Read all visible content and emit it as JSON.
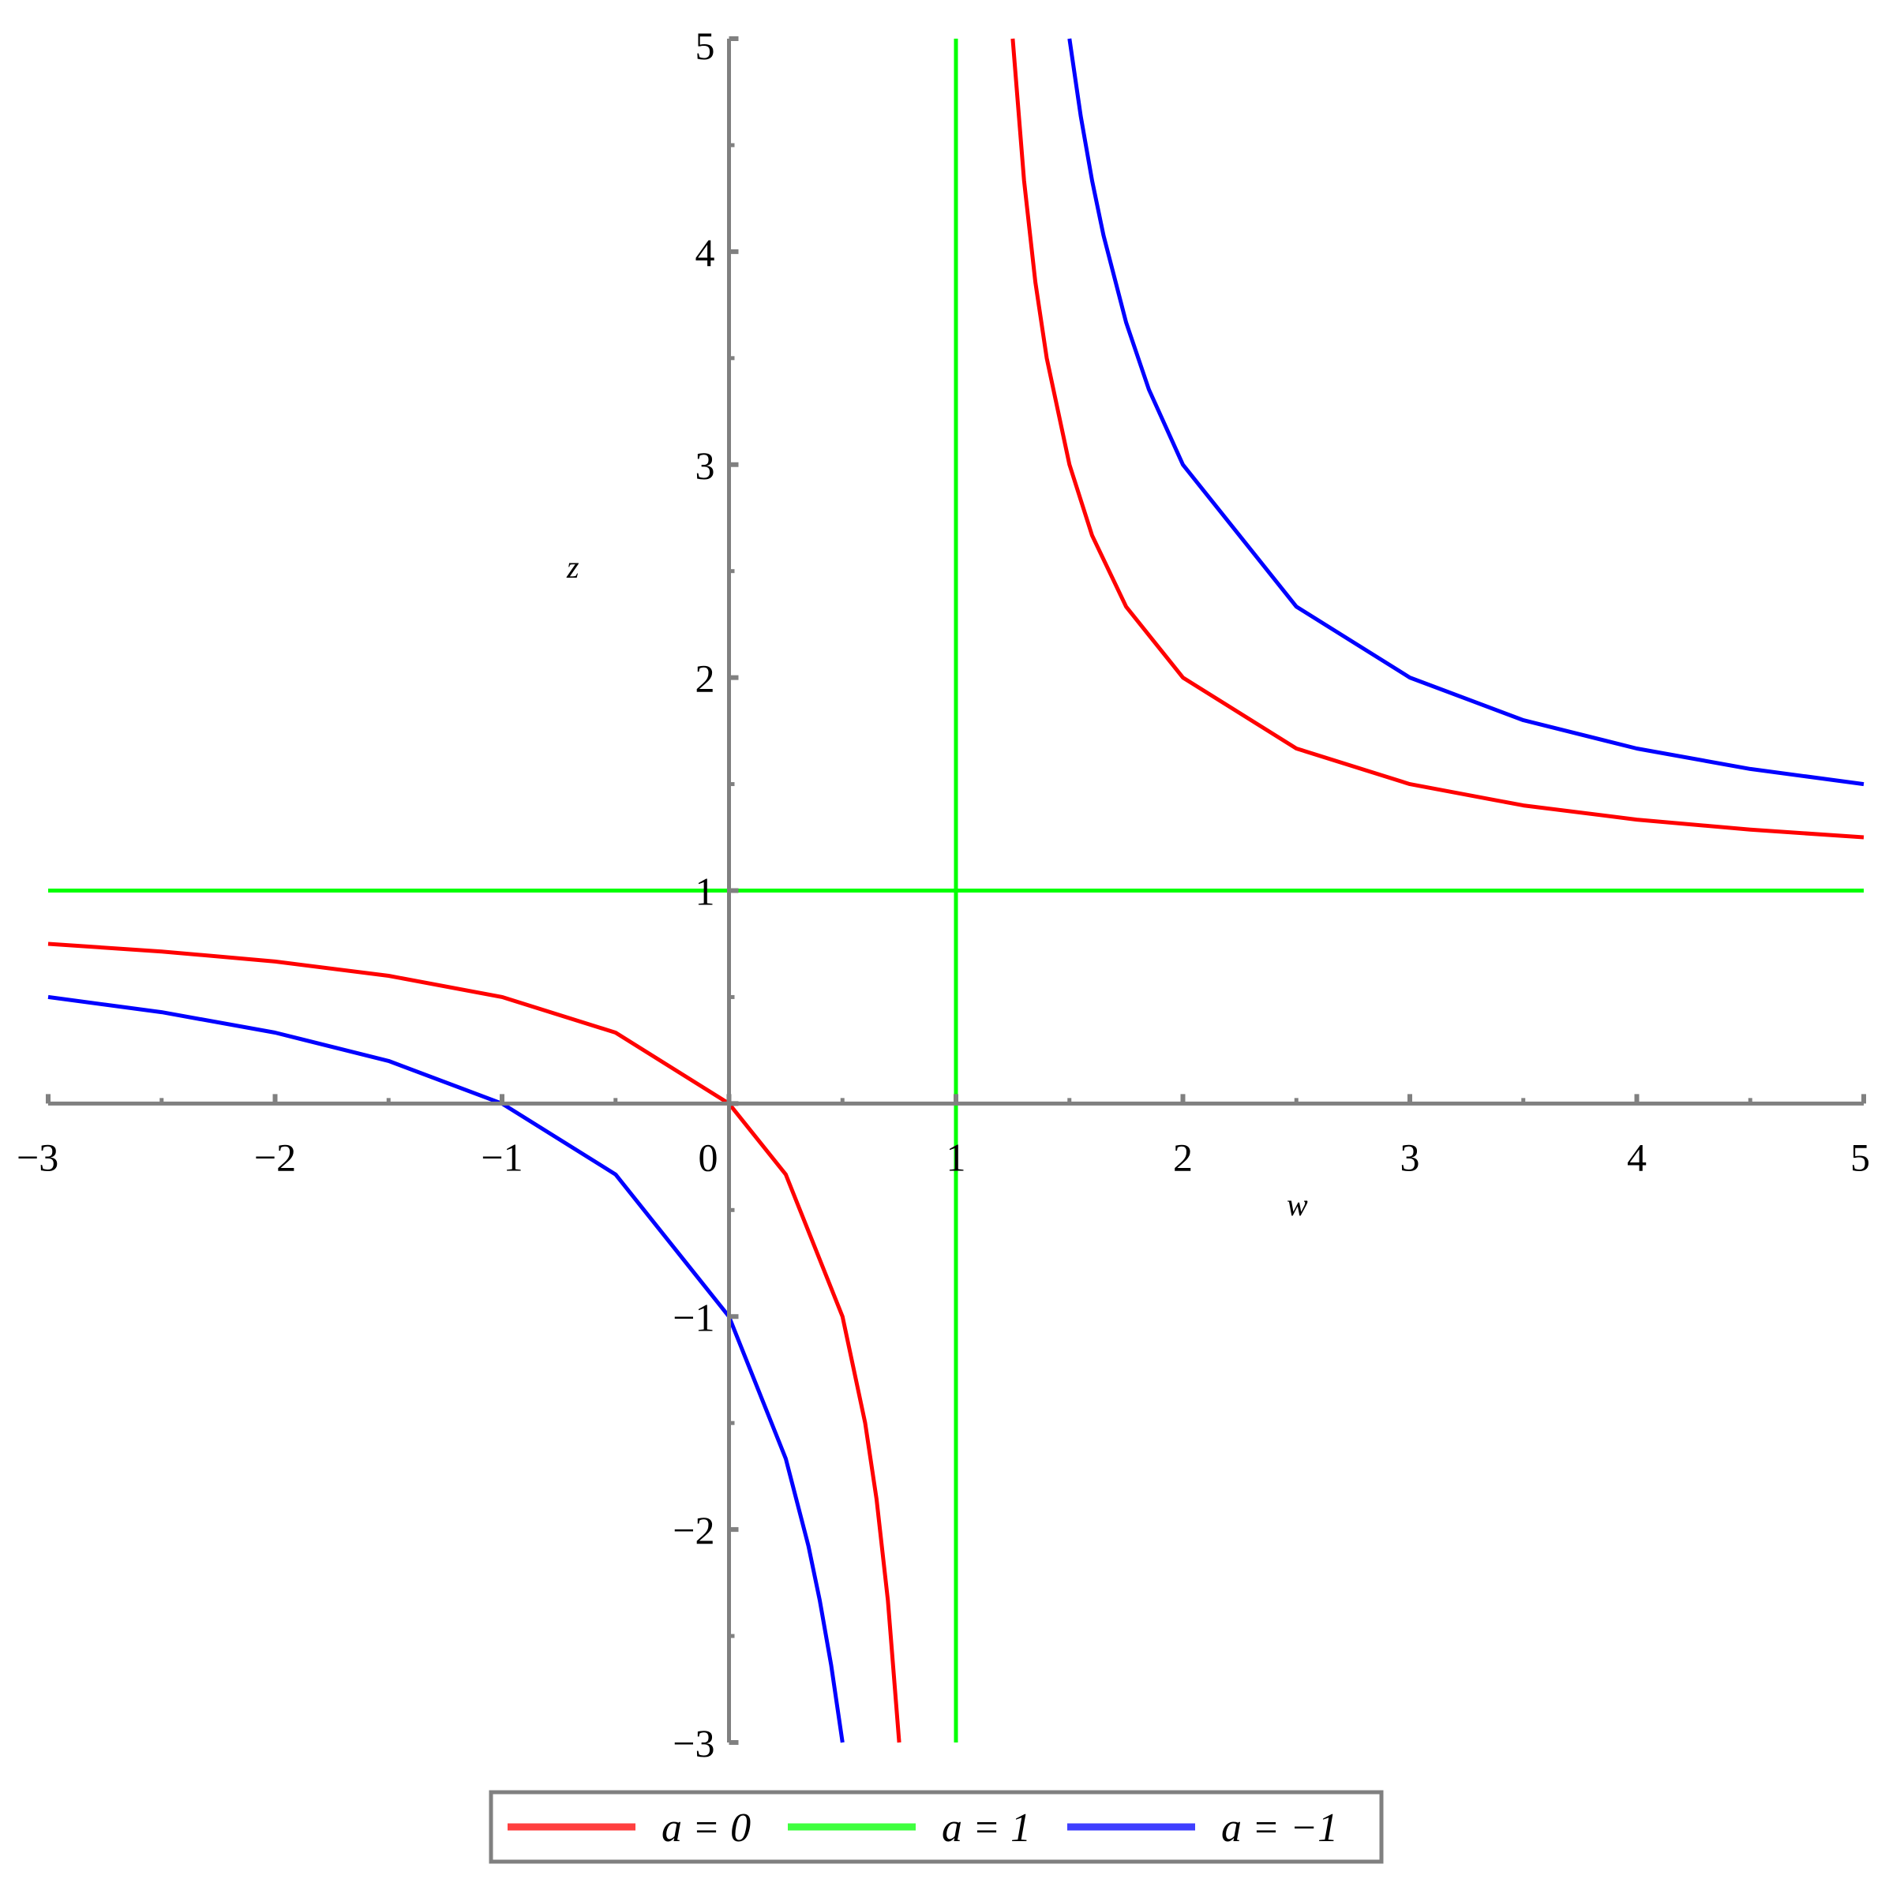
{
  "chart_data": {
    "type": "line",
    "xlabel": "w",
    "ylabel": "z",
    "xlim": [
      -3,
      5
    ],
    "ylim": [
      -3,
      5
    ],
    "x_ticks": [
      "−3",
      "−2",
      "−1",
      "0",
      "1",
      "2",
      "3",
      "4",
      "5"
    ],
    "y_ticks": [
      "−3",
      "−2",
      "−1",
      "1",
      "2",
      "3",
      "4",
      "5"
    ],
    "grid": false,
    "legend_placement": "bottom",
    "series": [
      {
        "name": "a = 0",
        "color": "#ff0000",
        "branches": [
          {
            "x": [
              -3,
              -2.5,
              -2,
              -1.5,
              -1,
              -0.5,
              0,
              0.25,
              0.5,
              0.6,
              0.65,
              0.7,
              0.75
            ],
            "y": [
              0.75,
              0.714,
              0.667,
              0.6,
              0.5,
              0.333,
              0,
              -0.333,
              -1,
              -1.5,
              -1.857,
              -2.333,
              -3
            ]
          },
          {
            "x": [
              1.25,
              1.3,
              1.35,
              1.4,
              1.5,
              1.6,
              1.75,
              2,
              2.5,
              3,
              3.5,
              4,
              4.5,
              5
            ],
            "y": [
              5,
              4.333,
              3.857,
              3.5,
              3,
              2.667,
              2.333,
              2,
              1.667,
              1.5,
              1.4,
              1.333,
              1.286,
              1.25
            ]
          }
        ]
      },
      {
        "name": "a = 1",
        "color": "#00ff00",
        "branches": [
          {
            "x": [
              -3,
              5
            ],
            "y": [
              1,
              1
            ]
          },
          {
            "x": [
              1,
              1
            ],
            "y": [
              -3,
              5
            ]
          }
        ]
      },
      {
        "name": "a = −1",
        "color": "#0000ff",
        "branches": [
          {
            "x": [
              -3,
              -2.5,
              -2,
              -1.5,
              -1,
              -0.5,
              0,
              0.25,
              0.35,
              0.4,
              0.45,
              0.5
            ],
            "y": [
              0.5,
              0.429,
              0.333,
              0.2,
              0,
              -0.333,
              -1,
              -1.667,
              -2.077,
              -2.333,
              -2.636,
              -3
            ]
          },
          {
            "x": [
              1.5,
              1.55,
              1.6,
              1.65,
              1.75,
              1.85,
              2,
              2.5,
              3,
              3.5,
              4,
              4.5,
              5
            ],
            "y": [
              5,
              4.636,
              4.333,
              4.077,
              3.667,
              3.353,
              3,
              2.333,
              2,
              1.8,
              1.667,
              1.571,
              1.5
            ]
          }
        ]
      }
    ]
  }
}
